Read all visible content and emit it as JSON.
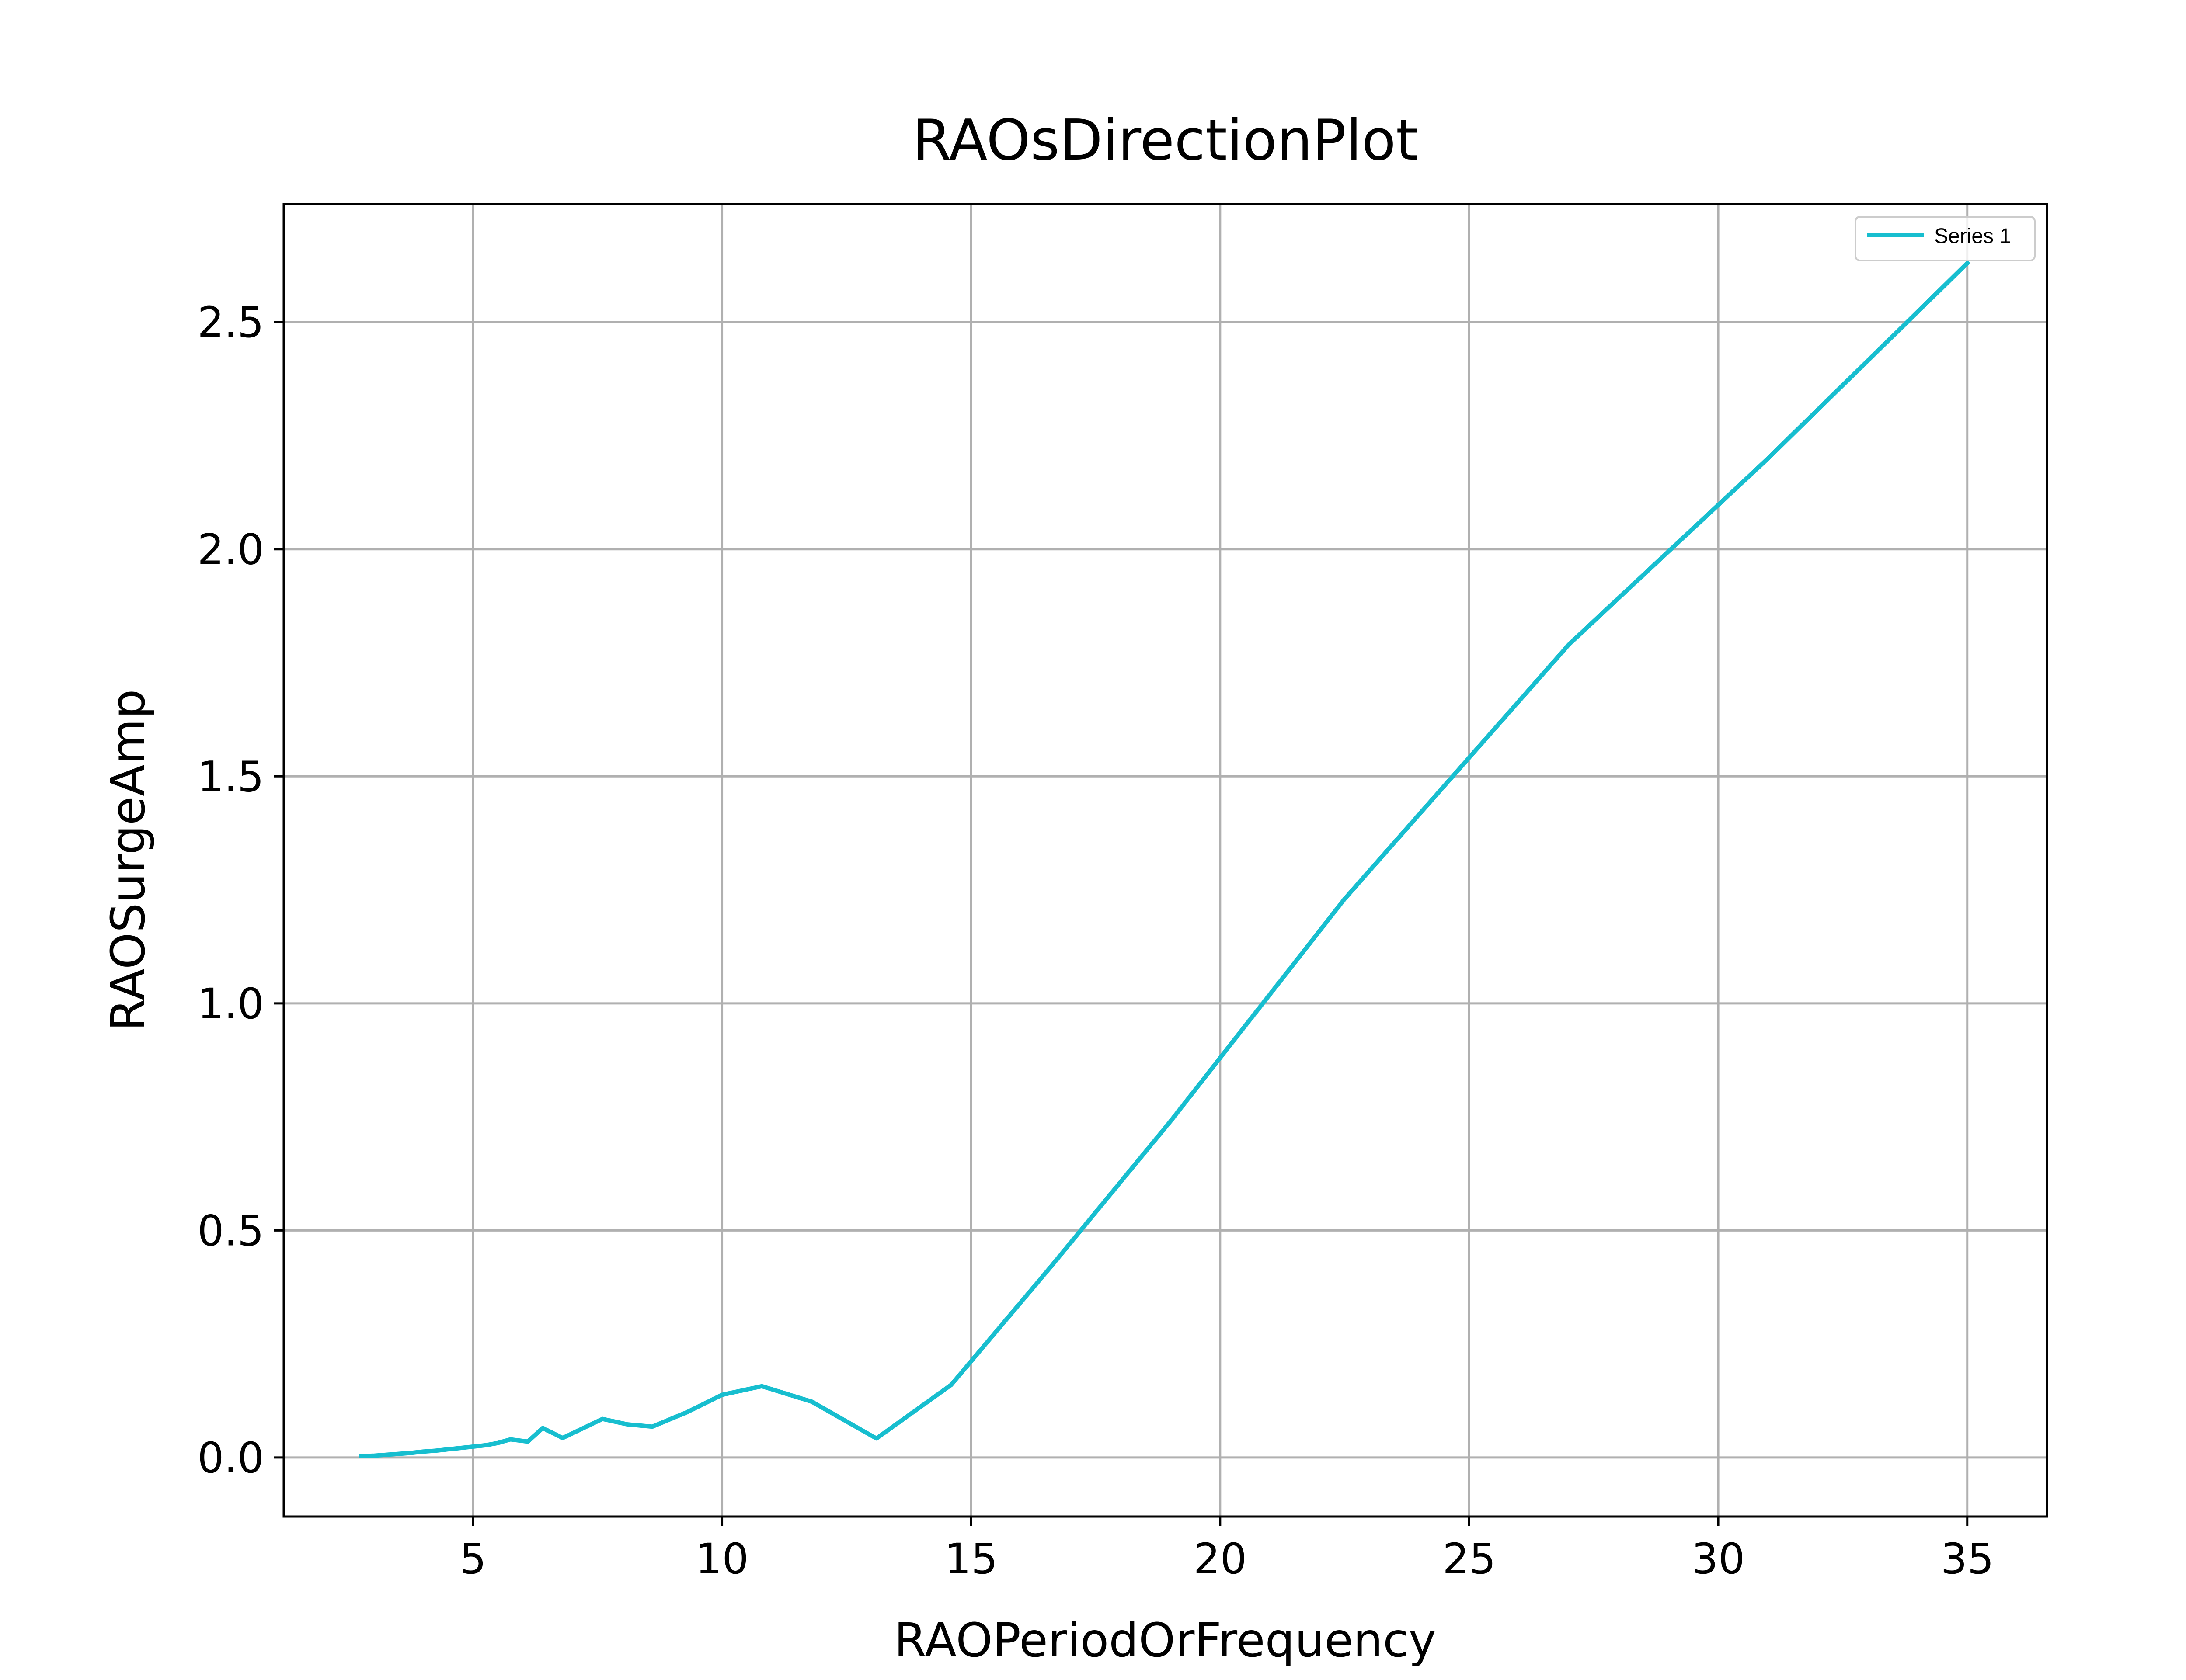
{
  "chart_data": {
    "type": "line",
    "title": "RAOsDirectionPlot",
    "xlabel": "RAOPeriodOrFrequency",
    "ylabel": "RAOSurgeAmp",
    "xlim": [
      1.2,
      36.6
    ],
    "ylim": [
      -0.13,
      2.76
    ],
    "xticks": [
      5,
      10,
      15,
      20,
      25,
      30,
      35
    ],
    "yticks": [
      0.0,
      0.5,
      1.0,
      1.5,
      2.0,
      2.5
    ],
    "xtick_labels": [
      "5",
      "10",
      "15",
      "20",
      "25",
      "30",
      "35"
    ],
    "ytick_labels": [
      "0.0",
      "0.5",
      "1.0",
      "1.5",
      "2.0",
      "2.5"
    ],
    "grid": true,
    "legend_position": "top-right",
    "series": [
      {
        "name": "Series 1",
        "color": "#17becf",
        "x": [
          2.75,
          3.0,
          3.25,
          3.5,
          3.75,
          4.0,
          4.25,
          4.5,
          4.75,
          5.0,
          5.25,
          5.5,
          5.75,
          6.1,
          6.4,
          6.8,
          7.6,
          8.1,
          8.6,
          9.3,
          10.0,
          10.8,
          11.8,
          13.1,
          14.6,
          16.6,
          19.0,
          22.5,
          27.0,
          31.0,
          35.0
        ],
        "y": [
          0.003,
          0.004,
          0.006,
          0.008,
          0.01,
          0.013,
          0.015,
          0.018,
          0.021,
          0.024,
          0.027,
          0.032,
          0.04,
          0.035,
          0.065,
          0.043,
          0.085,
          0.073,
          0.068,
          0.1,
          0.138,
          0.157,
          0.123,
          0.042,
          0.16,
          0.42,
          0.74,
          1.23,
          1.79,
          2.2,
          2.63
        ]
      }
    ]
  }
}
